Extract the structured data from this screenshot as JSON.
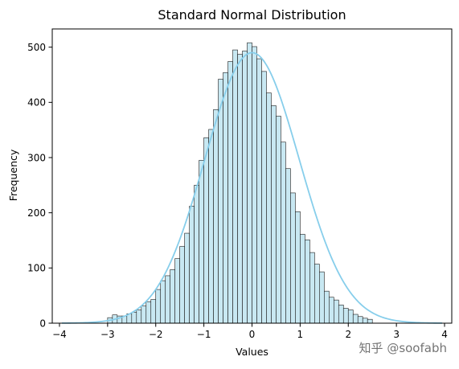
{
  "watermark": "知乎 @soofabh",
  "colors": {
    "bar_fill": "#c8e8f2",
    "bar_edge": "#1a1a1a",
    "kde_line": "#87ceeb",
    "axis": "#000000",
    "watermark": "#d3d3d3"
  },
  "chart_data": {
    "type": "bar",
    "subtype": "histogram-with-kde",
    "title": "Standard Normal Distribution",
    "xlabel": "Values",
    "ylabel": "Frequency",
    "xlim": [
      -4.15,
      4.15
    ],
    "ylim": [
      0,
      533
    ],
    "xticks": [
      -4,
      -3,
      -2,
      -1,
      0,
      1,
      2,
      3,
      4
    ],
    "yticks": [
      0,
      100,
      200,
      300,
      400,
      500
    ],
    "grid": false,
    "legend": "none",
    "bin_start": -3.0,
    "bin_width": 0.1,
    "values": [
      10,
      15,
      13,
      13,
      17,
      20,
      24,
      31,
      39,
      43,
      61,
      77,
      86,
      97,
      117,
      139,
      163,
      212,
      250,
      295,
      336,
      351,
      387,
      442,
      454,
      474,
      495,
      487,
      493,
      508,
      501,
      479,
      456,
      417,
      394,
      375,
      328,
      280,
      236,
      202,
      161,
      151,
      128,
      107,
      93,
      58,
      47,
      42,
      33,
      27,
      24,
      16,
      12,
      9,
      7
    ],
    "kde": {
      "type": "normal-density",
      "mean": 0.0,
      "std": 0.98,
      "peak": 490,
      "x_range": [
        -3.95,
        3.95
      ]
    }
  }
}
